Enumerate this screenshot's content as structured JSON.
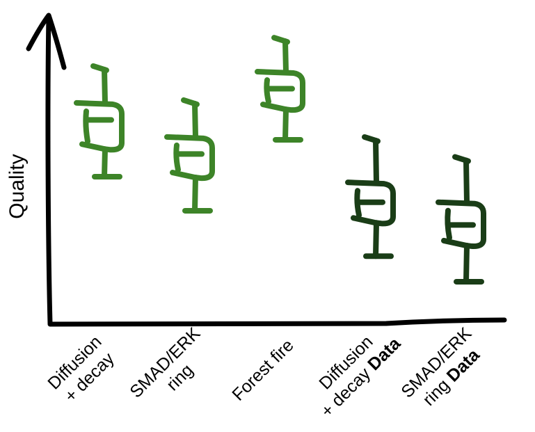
{
  "chart_data": {
    "type": "box",
    "ylabel": "Quality",
    "xlabel": "",
    "ylim": [
      0,
      100
    ],
    "grid": false,
    "legend": "none",
    "categories": [
      {
        "lines": [
          [
            {
              "t": "Diffusion",
              "b": false
            }
          ],
          [
            {
              "t": "+ decay",
              "b": false
            }
          ]
        ]
      },
      {
        "lines": [
          [
            {
              "t": "SMAD/ERK",
              "b": false
            }
          ],
          [
            {
              "t": "ring",
              "b": false
            }
          ]
        ]
      },
      {
        "lines": [
          [
            {
              "t": "Forest fire",
              "b": false
            }
          ]
        ]
      },
      {
        "lines": [
          [
            {
              "t": "Diffusion",
              "b": false
            }
          ],
          [
            {
              "t": "+ decay ",
              "b": false
            },
            {
              "t": "Data",
              "b": true
            }
          ]
        ]
      },
      {
        "lines": [
          [
            {
              "t": "SMAD/ERK",
              "b": false
            }
          ],
          [
            {
              "t": "ring ",
              "b": false
            },
            {
              "t": "Data",
              "b": true
            }
          ]
        ]
      }
    ],
    "series": [
      {
        "min": 50,
        "q1": 60,
        "median": 70,
        "q3": 76,
        "max": 88,
        "color": "#3d8428"
      },
      {
        "min": 38,
        "q1": 50,
        "median": 58,
        "q3": 64,
        "max": 76,
        "color": "#3d8428"
      },
      {
        "min": 63,
        "q1": 74,
        "median": 81,
        "q3": 87,
        "max": 98,
        "color": "#3d8428"
      },
      {
        "min": 22,
        "q1": 34,
        "median": 41,
        "q3": 48,
        "max": 63,
        "color": "#1a3d17"
      },
      {
        "min": 13,
        "q1": 26,
        "median": 33,
        "q3": 41,
        "max": 56,
        "color": "#1a3d17"
      }
    ]
  }
}
